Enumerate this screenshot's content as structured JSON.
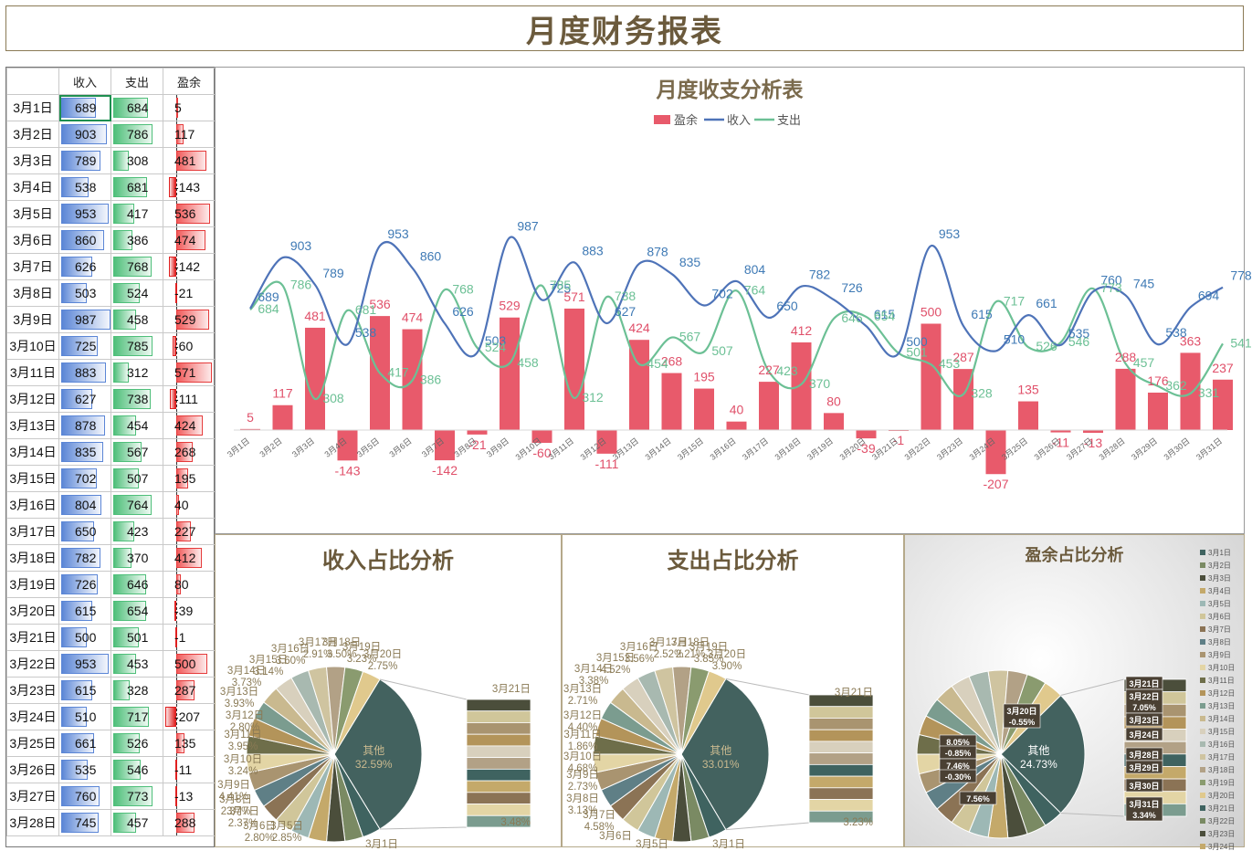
{
  "page_title": "月度财务报表",
  "table": {
    "headers": [
      "",
      "收入",
      "支出",
      "盈余"
    ],
    "rows": [
      {
        "date": "3月1日",
        "income": 689,
        "expense": 684,
        "surplus": 5
      },
      {
        "date": "3月2日",
        "income": 903,
        "expense": 786,
        "surplus": 117
      },
      {
        "date": "3月3日",
        "income": 789,
        "expense": 308,
        "surplus": 481
      },
      {
        "date": "3月4日",
        "income": 538,
        "expense": 681,
        "surplus": -143
      },
      {
        "date": "3月5日",
        "income": 953,
        "expense": 417,
        "surplus": 536
      },
      {
        "date": "3月6日",
        "income": 860,
        "expense": 386,
        "surplus": 474
      },
      {
        "date": "3月7日",
        "income": 626,
        "expense": 768,
        "surplus": -142
      },
      {
        "date": "3月8日",
        "income": 503,
        "expense": 524,
        "surplus": -21
      },
      {
        "date": "3月9日",
        "income": 987,
        "expense": 458,
        "surplus": 529
      },
      {
        "date": "3月10日",
        "income": 725,
        "expense": 785,
        "surplus": -60
      },
      {
        "date": "3月11日",
        "income": 883,
        "expense": 312,
        "surplus": 571
      },
      {
        "date": "3月12日",
        "income": 627,
        "expense": 738,
        "surplus": -111
      },
      {
        "date": "3月13日",
        "income": 878,
        "expense": 454,
        "surplus": 424
      },
      {
        "date": "3月14日",
        "income": 835,
        "expense": 567,
        "surplus": 268
      },
      {
        "date": "3月15日",
        "income": 702,
        "expense": 507,
        "surplus": 195
      },
      {
        "date": "3月16日",
        "income": 804,
        "expense": 764,
        "surplus": 40
      },
      {
        "date": "3月17日",
        "income": 650,
        "expense": 423,
        "surplus": 227
      },
      {
        "date": "3月18日",
        "income": 782,
        "expense": 370,
        "surplus": 412
      },
      {
        "date": "3月19日",
        "income": 726,
        "expense": 646,
        "surplus": 80
      },
      {
        "date": "3月20日",
        "income": 615,
        "expense": 654,
        "surplus": -39
      },
      {
        "date": "3月21日",
        "income": 500,
        "expense": 501,
        "surplus": -1
      },
      {
        "date": "3月22日",
        "income": 953,
        "expense": 453,
        "surplus": 500
      },
      {
        "date": "3月23日",
        "income": 615,
        "expense": 328,
        "surplus": 287
      },
      {
        "date": "3月24日",
        "income": 510,
        "expense": 717,
        "surplus": -207
      },
      {
        "date": "3月25日",
        "income": 661,
        "expense": 526,
        "surplus": 135
      },
      {
        "date": "3月26日",
        "income": 535,
        "expense": 546,
        "surplus": -11
      },
      {
        "date": "3月27日",
        "income": 760,
        "expense": 773,
        "surplus": -13
      },
      {
        "date": "3月28日",
        "income": 745,
        "expense": 457,
        "surplus": 288
      }
    ]
  },
  "chart_data": [
    {
      "type": "bar+line",
      "title": "月度收支分析表",
      "legend": [
        "盈余",
        "收入",
        "支出"
      ],
      "legend_position": "top",
      "colors": {
        "surplus": "#e85a6b",
        "income": "#4e73b8",
        "expense": "#6cc095"
      },
      "categories": [
        "3月1日",
        "3月2日",
        "3月3日",
        "3月4日",
        "3月5日",
        "3月6日",
        "3月7日",
        "3月8日",
        "3月9日",
        "3月10日",
        "3月11日",
        "3月12日",
        "3月13日",
        "3月14日",
        "3月15日",
        "3月16日",
        "3月17日",
        "3月18日",
        "3月19日",
        "3月20日",
        "3月21日",
        "3月22日",
        "3月23日",
        "3月24日",
        "3月25日",
        "3月26日",
        "3月27日",
        "3月28日",
        "3月29日",
        "3月30日",
        "3月31日"
      ],
      "series": [
        {
          "name": "盈余",
          "kind": "bar",
          "values": [
            5,
            117,
            481,
            -143,
            536,
            474,
            -142,
            -21,
            529,
            -60,
            571,
            -111,
            424,
            268,
            195,
            40,
            227,
            412,
            80,
            -39,
            -1,
            500,
            287,
            -207,
            135,
            -11,
            -13,
            288,
            176,
            363,
            237
          ]
        },
        {
          "name": "收入",
          "kind": "line",
          "values": [
            689,
            903,
            789,
            538,
            953,
            860,
            626,
            503,
            987,
            725,
            883,
            627,
            878,
            835,
            702,
            804,
            650,
            782,
            726,
            615,
            500,
            953,
            615,
            510,
            661,
            535,
            760,
            745,
            538,
            694,
            778
          ]
        },
        {
          "name": "支出",
          "kind": "line",
          "values": [
            684,
            786,
            308,
            681,
            417,
            386,
            768,
            524,
            458,
            785,
            312,
            738,
            454,
            567,
            507,
            764,
            423,
            370,
            646,
            654,
            501,
            453,
            328,
            717,
            526,
            546,
            773,
            457,
            362,
            331,
            541
          ]
        }
      ]
    },
    {
      "type": "pie",
      "title": "收入占比分析",
      "main_slice": {
        "label": "其他",
        "pct": "32.59%"
      },
      "visible_labels": [
        {
          "label": "3月5日",
          "pct": "2.85%"
        },
        {
          "label": "3月6日",
          "pct": "2.80%"
        },
        {
          "label": "3月7日",
          "pct": "2.37%"
        },
        {
          "label": "3月8日",
          "pct": "2.37%"
        },
        {
          "label": "3月9日",
          "pct": "4.41%"
        },
        {
          "label": "3月10日",
          "pct": "3.24%"
        },
        {
          "label": "3月11日",
          "pct": "3.95%"
        },
        {
          "label": "3月12日",
          "pct": "2.80%"
        },
        {
          "label": "3月13日",
          "pct": "3.93%"
        },
        {
          "label": "3月14日",
          "pct": "3.73%"
        },
        {
          "label": "3月15日",
          "pct": "3.14%"
        },
        {
          "label": "3月16日",
          "pct": "3.60%"
        },
        {
          "label": "3月17日",
          "pct": "2.91%"
        },
        {
          "label": "3月18日",
          "pct": "3.50%"
        },
        {
          "label": "3月19日",
          "pct": "3.23%"
        },
        {
          "label": "3月20日",
          "pct": "2.75%"
        },
        {
          "label": "3月1日",
          "pct": ""
        },
        {
          "label": "3月21日",
          "pct": ""
        },
        {
          "label": "",
          "pct": "3.48%"
        }
      ]
    },
    {
      "type": "pie",
      "title": "支出占比分析",
      "main_slice": {
        "label": "其他",
        "pct": "33.01%"
      },
      "visible_labels": [
        {
          "label": "3月5日",
          "pct": ""
        },
        {
          "label": "3月6日",
          "pct": ""
        },
        {
          "label": "3月7日",
          "pct": "4.58%"
        },
        {
          "label": "3月8日",
          "pct": "3.13%"
        },
        {
          "label": "3月9日",
          "pct": "2.73%"
        },
        {
          "label": "3月10日",
          "pct": "4.68%"
        },
        {
          "label": "3月11日",
          "pct": "1.86%"
        },
        {
          "label": "3月12日",
          "pct": "4.40%"
        },
        {
          "label": "3月13日",
          "pct": "2.71%"
        },
        {
          "label": "3月14日",
          "pct": "3.38%"
        },
        {
          "label": "3月15日",
          "pct": "4.52%"
        },
        {
          "label": "3月16日",
          "pct": "3.56%"
        },
        {
          "label": "3月17日",
          "pct": "2.52%"
        },
        {
          "label": "3月18日",
          "pct": "2.21%"
        },
        {
          "label": "3月19日",
          "pct": "3.85%"
        },
        {
          "label": "3月20日",
          "pct": "3.90%"
        },
        {
          "label": "3月1日",
          "pct": ""
        },
        {
          "label": "3月21日",
          "pct": ""
        },
        {
          "label": "",
          "pct": "3.23%"
        }
      ]
    },
    {
      "type": "pie",
      "title": "盈余占比分析",
      "legend_position": "right",
      "legend": [
        "3月1日",
        "3月2日",
        "3月3日",
        "3月4日",
        "3月5日",
        "3月6日",
        "3月7日",
        "3月8日",
        "3月9日",
        "3月10日",
        "3月11日",
        "3月12日",
        "3月13日",
        "3月14日",
        "3月15日",
        "3月16日",
        "3月17日",
        "3月18日",
        "3月19日",
        "3月20日",
        "3月21日",
        "3月22日",
        "3月23日",
        "3月24日"
      ],
      "main_slice": {
        "label": "其他",
        "pct": "24.73%"
      },
      "visible_labels": [
        {
          "label": "3月20日",
          "pct": "-0.55%"
        },
        {
          "label": "",
          "pct": "8.05%"
        },
        {
          "label": "",
          "pct": "-0.85%"
        },
        {
          "label": "",
          "pct": "7.46%"
        },
        {
          "label": "",
          "pct": "-0.30%"
        },
        {
          "label": "",
          "pct": "7.56%"
        },
        {
          "label": "3月21日",
          "pct": ""
        },
        {
          "label": "3月22日",
          "pct": "7.05%"
        },
        {
          "label": "3月23日",
          "pct": ""
        },
        {
          "label": "3月24日",
          "pct": ""
        },
        {
          "label": "3月28日",
          "pct": ""
        },
        {
          "label": "3月29日",
          "pct": ""
        },
        {
          "label": "3月30日",
          "pct": ""
        },
        {
          "label": "3月31日",
          "pct": "3.34%"
        }
      ]
    }
  ],
  "palette": [
    "#3f6360",
    "#7a8a63",
    "#4b4e3b",
    "#c4a96a",
    "#9db8b5",
    "#d0c69a",
    "#8b7355",
    "#5f7f86",
    "#a99470",
    "#e3d5a5",
    "#6e6e4a",
    "#b3945a",
    "#7b9c8f",
    "#c9b98f",
    "#d8d0bd",
    "#a8b9b0",
    "#cfc4a0",
    "#b2a186",
    "#8a9b6f",
    "#e0c98d"
  ]
}
